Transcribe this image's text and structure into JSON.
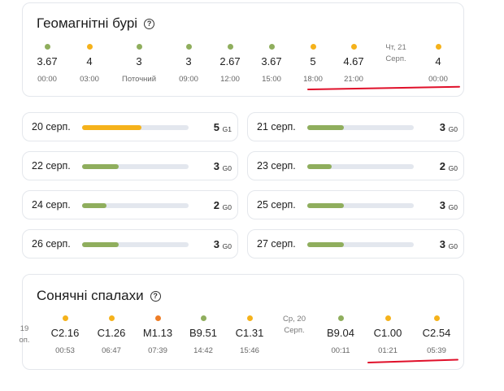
{
  "colors": {
    "green": "#8fae5d",
    "yellow": "#f5b21b",
    "orange": "#ee7d26",
    "track": "#e3e7ee",
    "annotation_red": "#e0102a"
  },
  "geomagnetic": {
    "title": "Геомагнітні бурі",
    "help_icon": "question-circle-icon",
    "points": [
      {
        "value": "3.67",
        "time": "00:00",
        "color": "green"
      },
      {
        "value": "4",
        "time": "03:00",
        "color": "yellow"
      },
      {
        "value": "3",
        "time": "Поточний",
        "color": "green"
      },
      {
        "value": "3",
        "time": "09:00",
        "color": "green"
      },
      {
        "value": "2.67",
        "time": "12:00",
        "color": "green"
      },
      {
        "value": "3.67",
        "time": "15:00",
        "color": "green"
      },
      {
        "value": "5",
        "time": "18:00",
        "color": "yellow"
      },
      {
        "value": "4.67",
        "time": "21:00",
        "color": "yellow"
      },
      {
        "day_line1": "Чт, 21",
        "day_line2": "Серп."
      },
      {
        "value": "4",
        "time": "00:00",
        "color": "yellow"
      }
    ]
  },
  "daily": [
    {
      "date": "20 серп.",
      "kp": "5",
      "g": "G1",
      "level": 0.56,
      "color": "yellow"
    },
    {
      "date": "21 серп.",
      "kp": "3",
      "g": "G0",
      "level": 0.34,
      "color": "green"
    },
    {
      "date": "22 серп.",
      "kp": "3",
      "g": "G0",
      "level": 0.34,
      "color": "green"
    },
    {
      "date": "23 серп.",
      "kp": "2",
      "g": "G0",
      "level": 0.23,
      "color": "green"
    },
    {
      "date": "24 серп.",
      "kp": "2",
      "g": "G0",
      "level": 0.23,
      "color": "green"
    },
    {
      "date": "25 серп.",
      "kp": "3",
      "g": "G0",
      "level": 0.34,
      "color": "green"
    },
    {
      "date": "26 серп.",
      "kp": "3",
      "g": "G0",
      "level": 0.34,
      "color": "green"
    },
    {
      "date": "27 серп.",
      "kp": "3",
      "g": "G0",
      "level": 0.34,
      "color": "green"
    }
  ],
  "flares": {
    "title": "Сонячні спалахи",
    "help_icon": "question-circle-icon",
    "cut_day": {
      "line1": "19",
      "line2": "оп."
    },
    "points": [
      {
        "value": "C2.16",
        "time": "00:53",
        "color": "yellow"
      },
      {
        "value": "C1.26",
        "time": "06:47",
        "color": "yellow"
      },
      {
        "value": "M1.13",
        "time": "07:39",
        "color": "orange"
      },
      {
        "value": "B9.51",
        "time": "14:42",
        "color": "green"
      },
      {
        "value": "C1.31",
        "time": "15:46",
        "color": "yellow"
      },
      {
        "day_line1": "Ср, 20",
        "day_line2": "Серп."
      },
      {
        "value": "B9.04",
        "time": "00:11",
        "color": "green"
      },
      {
        "value": "C1.00",
        "time": "01:21",
        "color": "yellow"
      },
      {
        "value": "C2.54",
        "time": "05:39",
        "color": "yellow"
      }
    ]
  }
}
